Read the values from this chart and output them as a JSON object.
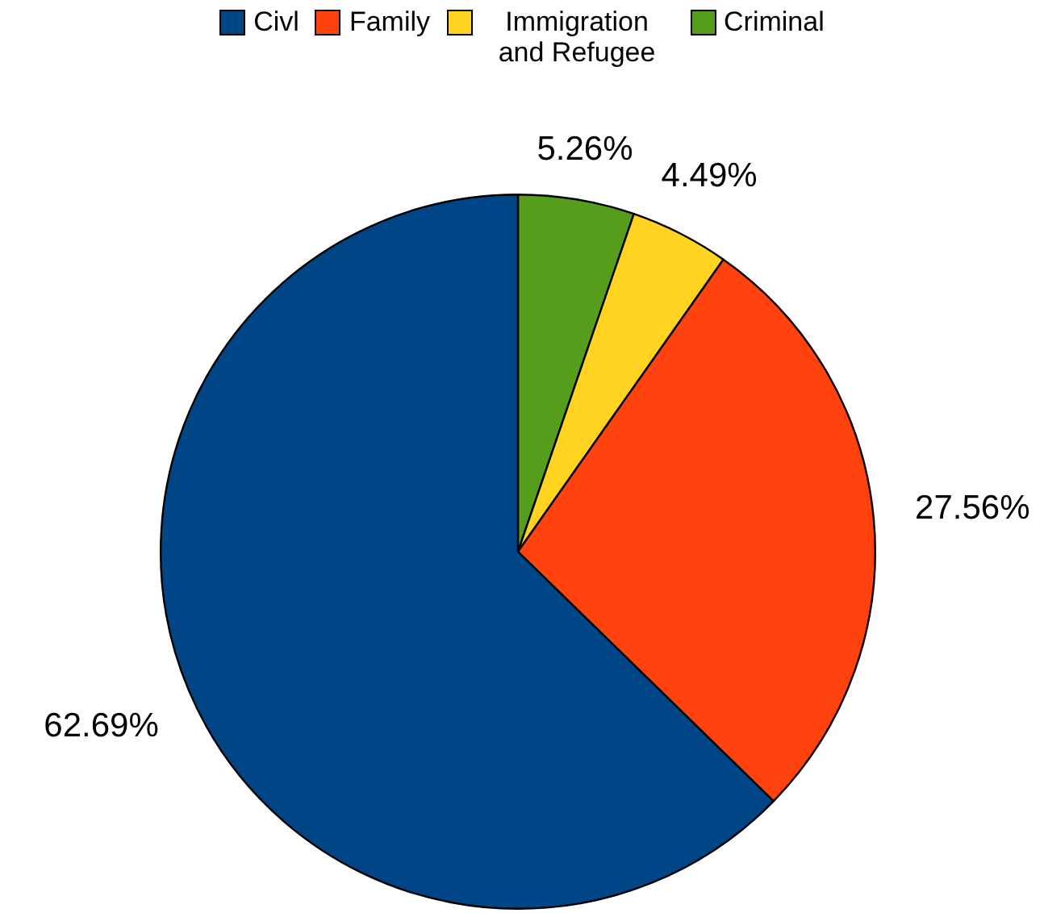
{
  "chart_data": {
    "type": "pie",
    "categories": [
      "Civl",
      "Family",
      "Immigration and Refugee",
      "Criminal"
    ],
    "values": [
      62.69,
      27.56,
      4.49,
      5.26
    ],
    "colors": [
      "#004586",
      "#ff420e",
      "#ffd320",
      "#579d1c"
    ],
    "value_labels": [
      "62.69%",
      "27.56%",
      "4.49%",
      "5.26%"
    ],
    "legend": "top"
  }
}
